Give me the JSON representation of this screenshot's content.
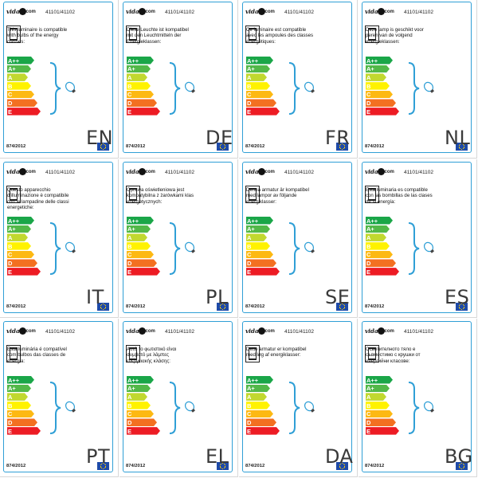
{
  "logo": {
    "text": "vida",
    "suffix": "com"
  },
  "code": "41101/41102",
  "footer": "874/2012",
  "energy_classes": [
    {
      "label": "A++",
      "color": "#1aa648"
    },
    {
      "label": "A+",
      "color": "#52b848"
    },
    {
      "label": "A",
      "color": "#c1d82f"
    },
    {
      "label": "B",
      "color": "#fff200"
    },
    {
      "label": "C",
      "color": "#fdb913"
    },
    {
      "label": "D",
      "color": "#f37021"
    },
    {
      "label": "E",
      "color": "#ed1c24"
    }
  ],
  "accent_color": "#2f9fd6",
  "labels": [
    {
      "lang": "EN",
      "text": "This luminaire is compatible with bulbs of the energy classes:"
    },
    {
      "lang": "DE",
      "text": "Diese Leuchte ist kompatibel mit den Leuchtmitteln der Energieklassen:"
    },
    {
      "lang": "FR",
      "text": "Ce luminaire est compatible avec les ampoules des classes énergétiques:"
    },
    {
      "lang": "NL",
      "text": "Deze lamp is geschikt voor peren van de volgend energieklassen:"
    },
    {
      "lang": "IT",
      "text": "Questo apparecchio d'illuminazione è compatibile con le lampadine delle classi energetiche:"
    },
    {
      "lang": "PL",
      "text": "Oprawa oświetleniowa jest kompatybilna z żarówkami klas energetycznych:"
    },
    {
      "lang": "SE",
      "text": "Denna armatur är kompatibel med lampor av följande energiklasser:"
    },
    {
      "lang": "ES",
      "text": "Esta luminaria es compatible con las bombillas de las clases de la energía:"
    },
    {
      "lang": "PT",
      "text": "Esta luminária é compatível com bulbos das classes de energia:"
    },
    {
      "lang": "EL",
      "text": "Αυτό το φωτιστικό είναι συμβατό με λάμπες ενεργειακής κλάσης:"
    },
    {
      "lang": "DA",
      "text": "Dette armatur er kompatibel med løg af energiklasser:"
    },
    {
      "lang": "BG",
      "text": "Осветителното тяло е съвместимо с крушки от енергийни класове:"
    }
  ]
}
